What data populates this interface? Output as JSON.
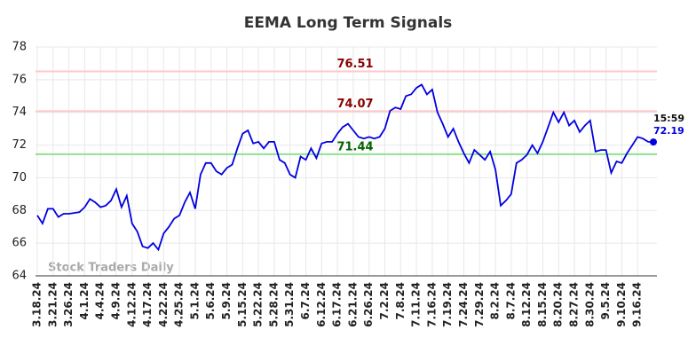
{
  "chart_data": {
    "type": "line",
    "title": "EEMA Long Term Signals",
    "categories": [
      "3.18.24",
      null,
      null,
      "3.21.24",
      null,
      null,
      "3.26.24",
      null,
      null,
      "4.1.24",
      null,
      null,
      "4.4.24",
      null,
      null,
      "4.9.24",
      null,
      null,
      "4.12.24",
      null,
      null,
      "4.17.24",
      null,
      null,
      "4.22.24",
      null,
      null,
      "4.25.24",
      null,
      null,
      "5.1.24",
      null,
      null,
      "5.6.24",
      null,
      null,
      "5.9.24",
      null,
      null,
      "5.15.24",
      null,
      null,
      "5.22.24",
      null,
      null,
      "5.28.24",
      null,
      null,
      "5.31.24",
      null,
      null,
      "6.7.24",
      null,
      null,
      "6.12.24",
      null,
      null,
      "6.17.24",
      null,
      null,
      "6.21.24",
      null,
      null,
      "6.26.24",
      null,
      null,
      "7.2.24",
      null,
      null,
      "7.8.24",
      null,
      null,
      "7.11.24",
      null,
      null,
      "7.16.24",
      null,
      null,
      "7.19.24",
      null,
      null,
      "7.24.24",
      null,
      null,
      "7.29.24",
      null,
      null,
      "8.2.24",
      null,
      null,
      "8.7.24",
      null,
      null,
      "8.12.24",
      null,
      null,
      "8.15.24",
      null,
      null,
      "8.20.24",
      null,
      null,
      "8.27.24",
      null,
      null,
      "8.30.24",
      null,
      null,
      "9.5.24",
      null,
      null,
      "9.10.24",
      null,
      null,
      "9.16.24",
      null,
      null,
      null
    ],
    "series": [
      {
        "name": "EEMA",
        "color": "#0000e0",
        "values": [
          67.7,
          67.2,
          68.1,
          68.1,
          67.6,
          67.8,
          67.8,
          67.85,
          67.9,
          68.2,
          68.7,
          68.5,
          68.2,
          68.3,
          68.6,
          69.3,
          68.2,
          68.9,
          67.2,
          66.7,
          65.8,
          65.7,
          66.0,
          65.6,
          66.6,
          67.0,
          67.5,
          67.7,
          68.5,
          69.1,
          68.1,
          70.2,
          70.9,
          70.9,
          70.4,
          70.2,
          70.6,
          70.8,
          71.8,
          72.7,
          72.9,
          72.1,
          72.2,
          71.8,
          72.2,
          72.2,
          71.1,
          70.9,
          70.2,
          70.0,
          71.3,
          71.1,
          71.8,
          71.2,
          72.1,
          72.2,
          72.2,
          72.7,
          73.1,
          73.3,
          72.9,
          72.5,
          72.4,
          72.5,
          72.4,
          72.5,
          73.0,
          74.1,
          74.3,
          74.2,
          75.0,
          75.1,
          75.5,
          75.7,
          75.1,
          75.4,
          74.0,
          73.3,
          72.5,
          73.0,
          72.2,
          71.5,
          70.9,
          71.7,
          71.4,
          71.1,
          71.6,
          70.5,
          68.3,
          68.6,
          69.0,
          70.9,
          71.1,
          71.4,
          72.0,
          71.5,
          72.2,
          73.1,
          74.0,
          73.4,
          74.0,
          73.2,
          73.5,
          72.8,
          73.2,
          73.5,
          71.6,
          71.7,
          71.7,
          70.3,
          71.0,
          70.9,
          71.5,
          72.0,
          72.5,
          72.4,
          72.2,
          72.19
        ]
      }
    ],
    "last_time": "15:59",
    "hlines": [
      {
        "value": 76.51,
        "color": "#ffc8c8",
        "label_color": "#8b0000"
      },
      {
        "value": 74.07,
        "color": "#ffc8c8",
        "label_color": "#8b0000"
      },
      {
        "value": 71.44,
        "color": "#90e090",
        "label_color": "#006400"
      }
    ],
    "watermark": "Stock Traders Daily",
    "ylim": [
      64,
      78
    ],
    "yticks": [
      64,
      66,
      68,
      70,
      72,
      74,
      76,
      78
    ],
    "grid": true
  }
}
